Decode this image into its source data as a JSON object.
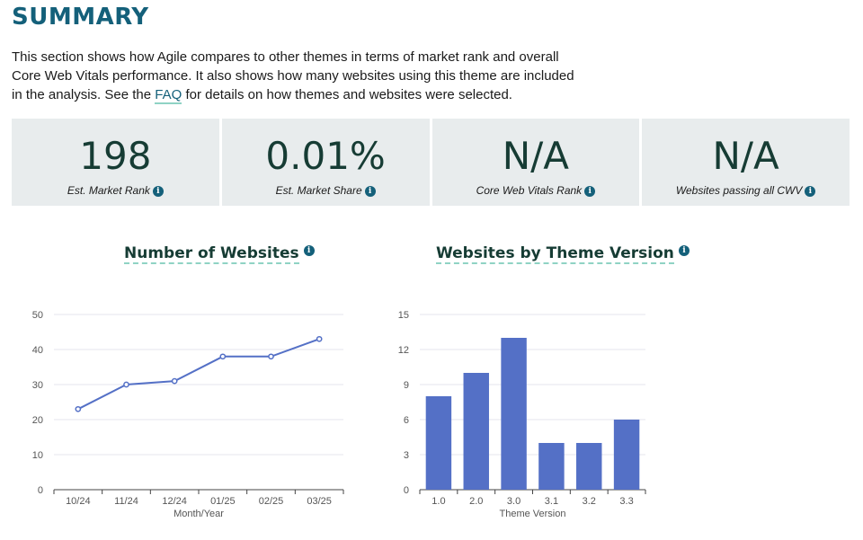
{
  "title": "SUMMARY",
  "intro": {
    "text_before": "This section shows how Agile compares to other themes in terms of market rank and overall Core Web Vitals performance. It also shows how many websites using this theme are included in the analysis. See the ",
    "link": "FAQ",
    "text_after": " for details on how themes and websites were selected."
  },
  "stats": [
    {
      "value": "198",
      "label": "Est. Market Rank"
    },
    {
      "value": "0.01%",
      "label": "Est. Market Share"
    },
    {
      "value": "N/A",
      "label": "Core Web Vitals Rank"
    },
    {
      "value": "N/A",
      "label": "Websites passing all CWV"
    }
  ],
  "info_glyph": "i",
  "colors": {
    "accent": "#14607a",
    "series": "#5470c6",
    "tile_bg": "#e8eced",
    "heading": "#163c34"
  },
  "chart_data": [
    {
      "type": "line",
      "title": "Number of Websites",
      "categories": [
        "10/24",
        "11/24",
        "12/24",
        "01/25",
        "02/25",
        "03/25"
      ],
      "values": [
        23,
        30,
        31,
        38,
        38,
        43
      ],
      "xlabel": "Month/Year",
      "ylabel": "",
      "ylim": [
        0,
        50
      ],
      "yticks": [
        0,
        10,
        20,
        30,
        40,
        50
      ],
      "grid": true
    },
    {
      "type": "bar",
      "title": "Websites by Theme Version",
      "categories": [
        "1.0",
        "2.0",
        "3.0",
        "3.1",
        "3.2",
        "3.3"
      ],
      "values": [
        8,
        10,
        13,
        4,
        4,
        6
      ],
      "xlabel": "Theme Version",
      "ylabel": "",
      "ylim": [
        0,
        15
      ],
      "yticks": [
        0,
        3,
        6,
        9,
        12,
        15
      ],
      "grid": true
    }
  ]
}
